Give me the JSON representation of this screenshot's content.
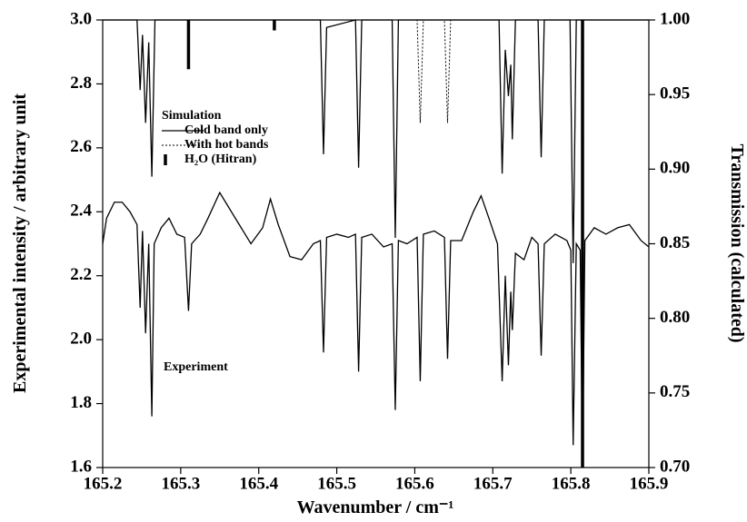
{
  "chart_data": {
    "type": "line",
    "x_label": "Wavenumber / cm⁻¹",
    "y_label": "Experimental intensity / arbitrary unit",
    "y2_label": "Transmission (calculated)",
    "xlim": [
      165.2,
      165.9
    ],
    "xticks": [
      165.2,
      165.3,
      165.4,
      165.5,
      165.6,
      165.7,
      165.8,
      165.9
    ],
    "ylim": [
      1.6,
      3.0
    ],
    "yticks": [
      1.6,
      1.8,
      {
        "value": 2,
        "label": "2.0"
      },
      2.2,
      2.4,
      2.6,
      2.8,
      {
        "value": 3,
        "label": "3.0"
      }
    ],
    "y2lim": [
      0.7,
      1.0
    ],
    "y2ticks": [
      {
        "value": 0.7,
        "label": "0.70"
      },
      0.75,
      {
        "value": 0.8,
        "label": "0.80"
      },
      0.85,
      {
        "value": 0.9,
        "label": "0.90"
      },
      0.95,
      {
        "value": 1,
        "label": "1.00"
      }
    ],
    "legend_title": "Simulation",
    "annotation": "Experiment",
    "series": [
      {
        "name": null,
        "type": "line",
        "line_style": "solid",
        "color": "#000000",
        "x": [
          165.2,
          165.205,
          165.215,
          165.225,
          165.235,
          165.244,
          165.248,
          165.251,
          165.255,
          165.259,
          165.263,
          165.266,
          165.275,
          165.285,
          165.295,
          165.305,
          165.31,
          165.314,
          165.325,
          165.335,
          165.35,
          165.36,
          165.375,
          165.39,
          165.405,
          165.415,
          165.425,
          165.44,
          165.455,
          165.47,
          165.479,
          165.483,
          165.487,
          165.5,
          165.515,
          165.524,
          165.528,
          165.532,
          165.545,
          165.56,
          165.571,
          165.575,
          165.579,
          165.59,
          165.603,
          165.607,
          165.611,
          165.625,
          165.638,
          165.642,
          165.646,
          165.66,
          165.675,
          165.685,
          165.695,
          165.706,
          165.712,
          165.716,
          165.72,
          165.723,
          165.725,
          165.729,
          165.74,
          165.75,
          165.758,
          165.762,
          165.766,
          165.78,
          165.795,
          165.8,
          165.803,
          165.807,
          165.812,
          165.815,
          165.818,
          165.83,
          165.845,
          165.86,
          165.875,
          165.89,
          165.9
        ],
        "values": [
          2.3,
          2.38,
          2.43,
          2.43,
          2.4,
          2.36,
          2.1,
          2.34,
          2.02,
          2.3,
          1.76,
          2.3,
          2.35,
          2.38,
          2.33,
          2.32,
          2.09,
          2.3,
          2.33,
          2.38,
          2.46,
          2.42,
          2.36,
          2.3,
          2.35,
          2.44,
          2.36,
          2.26,
          2.25,
          2.3,
          2.31,
          1.96,
          2.32,
          2.33,
          2.32,
          2.33,
          1.9,
          2.32,
          2.33,
          2.29,
          2.3,
          1.78,
          2.31,
          2.3,
          2.32,
          1.87,
          2.33,
          2.34,
          2.32,
          1.94,
          2.31,
          2.31,
          2.4,
          2.45,
          2.38,
          2.3,
          1.87,
          2.2,
          1.92,
          2.15,
          2.03,
          2.27,
          2.25,
          2.32,
          2.3,
          1.95,
          2.3,
          2.33,
          2.31,
          2.28,
          1.67,
          2.3,
          2.28,
          1.6,
          2.31,
          2.35,
          2.33,
          2.35,
          2.36,
          2.31,
          2.29
        ]
      },
      {
        "name": "Cold band only",
        "type": "line",
        "line_style": "solid",
        "color": "#000000",
        "axis": "y2",
        "x": [
          165.2,
          165.244,
          165.248,
          165.251,
          165.255,
          165.259,
          165.263,
          165.267,
          165.479,
          165.483,
          165.487,
          165.524,
          165.528,
          165.532,
          165.571,
          165.575,
          165.579,
          165.708,
          165.712,
          165.716,
          165.72,
          165.723,
          165.725,
          165.729,
          165.758,
          165.762,
          165.766,
          165.799,
          165.803,
          165.807,
          165.9
        ],
        "values": [
          1.0,
          1.0,
          0.953,
          0.99,
          0.931,
          0.985,
          0.895,
          1.0,
          1.0,
          0.91,
          0.995,
          1.0,
          0.901,
          1.0,
          1.0,
          0.854,
          1.0,
          1.0,
          0.897,
          0.98,
          0.949,
          0.97,
          0.92,
          1.0,
          1.0,
          0.908,
          1.0,
          1.0,
          0.837,
          1.0,
          1.0
        ]
      },
      {
        "name": "With hot bands",
        "type": "line",
        "line_style": "dotted",
        "color": "#000000",
        "axis": "y2",
        "x": [
          165.579,
          165.603,
          165.607,
          165.611,
          165.638,
          165.642,
          165.646,
          165.708
        ],
        "values": [
          1.0,
          1.0,
          0.931,
          1.0,
          1.0,
          0.931,
          1.0,
          1.0
        ]
      },
      {
        "name": "H₂O (Hitran)",
        "type": "stick",
        "color": "#000000",
        "axis": "y2",
        "x": [
          165.31,
          165.42,
          165.815
        ],
        "values": [
          0.967,
          0.993,
          0.7
        ]
      }
    ]
  }
}
